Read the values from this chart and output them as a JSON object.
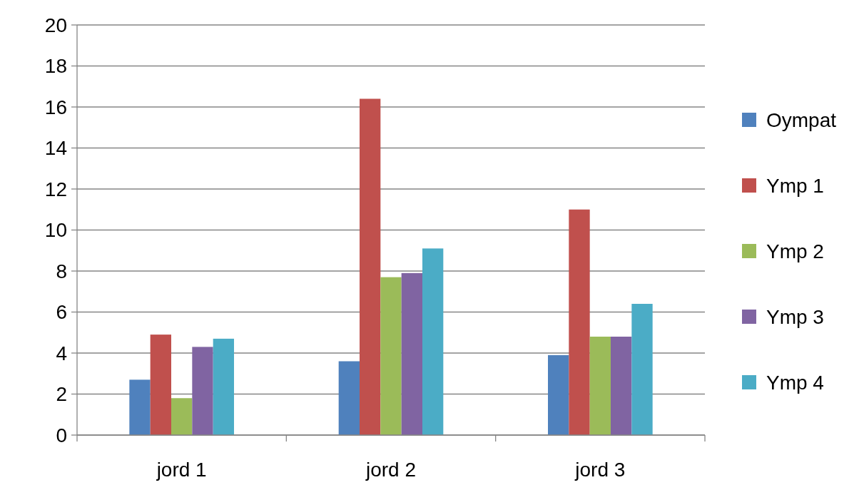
{
  "chart_data": {
    "type": "bar",
    "categories": [
      "jord 1",
      "jord 2",
      "jord 3"
    ],
    "series": [
      {
        "name": "Oympat",
        "color": "#4f81bd",
        "values": [
          2.7,
          3.6,
          3.9
        ]
      },
      {
        "name": "Ymp 1",
        "color": "#c0504d",
        "values": [
          4.9,
          16.4,
          11.0
        ]
      },
      {
        "name": "Ymp 2",
        "color": "#9bbb59",
        "values": [
          1.8,
          7.7,
          4.8
        ]
      },
      {
        "name": "Ymp 3",
        "color": "#8064a2",
        "values": [
          4.3,
          7.9,
          4.8
        ]
      },
      {
        "name": "Ymp 4",
        "color": "#4bacc6",
        "values": [
          4.7,
          9.1,
          6.4
        ]
      }
    ],
    "ylim": [
      0,
      20
    ],
    "yticks": [
      0,
      2,
      4,
      6,
      8,
      10,
      12,
      14,
      16,
      18,
      20
    ],
    "grid": "y",
    "legend": "right"
  }
}
